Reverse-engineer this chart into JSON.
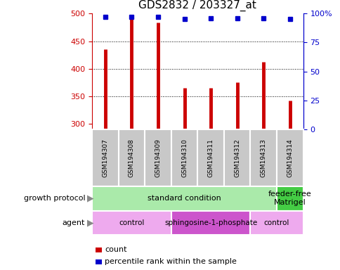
{
  "title": "GDS2832 / 203327_at",
  "samples": [
    "GSM194307",
    "GSM194308",
    "GSM194309",
    "GSM194310",
    "GSM194311",
    "GSM194312",
    "GSM194313",
    "GSM194314"
  ],
  "counts": [
    436,
    494,
    484,
    365,
    366,
    376,
    412,
    342
  ],
  "percentiles": [
    97,
    97,
    97,
    95,
    96,
    96,
    96,
    95
  ],
  "ylim_left": [
    290,
    500
  ],
  "ylim_right": [
    0,
    100
  ],
  "yticks_left": [
    300,
    350,
    400,
    450,
    500
  ],
  "yticks_right": [
    0,
    25,
    50,
    75,
    100
  ],
  "bar_color": "#cc0000",
  "dot_color": "#0000cc",
  "growth_protocol_groups": [
    {
      "label": "standard condition",
      "start": 0,
      "end": 7,
      "color": "#aaeaaa"
    },
    {
      "label": "feeder-free\nMatrigel",
      "start": 7,
      "end": 8,
      "color": "#44cc44"
    }
  ],
  "agent_groups": [
    {
      "label": "control",
      "start": 0,
      "end": 3,
      "color": "#eeaaee"
    },
    {
      "label": "sphingosine-1-phosphate",
      "start": 3,
      "end": 6,
      "color": "#cc55cc"
    },
    {
      "label": "control",
      "start": 6,
      "end": 8,
      "color": "#eeaaee"
    }
  ],
  "legend_count_label": "count",
  "legend_percentile_label": "percentile rank within the sample",
  "left_axis_color": "#cc0000",
  "right_axis_color": "#0000cc",
  "grid_lines": [
    350,
    400,
    450
  ],
  "sample_box_color": "#c8c8c8",
  "left_label_growth": "growth protocol",
  "left_label_agent": "agent"
}
